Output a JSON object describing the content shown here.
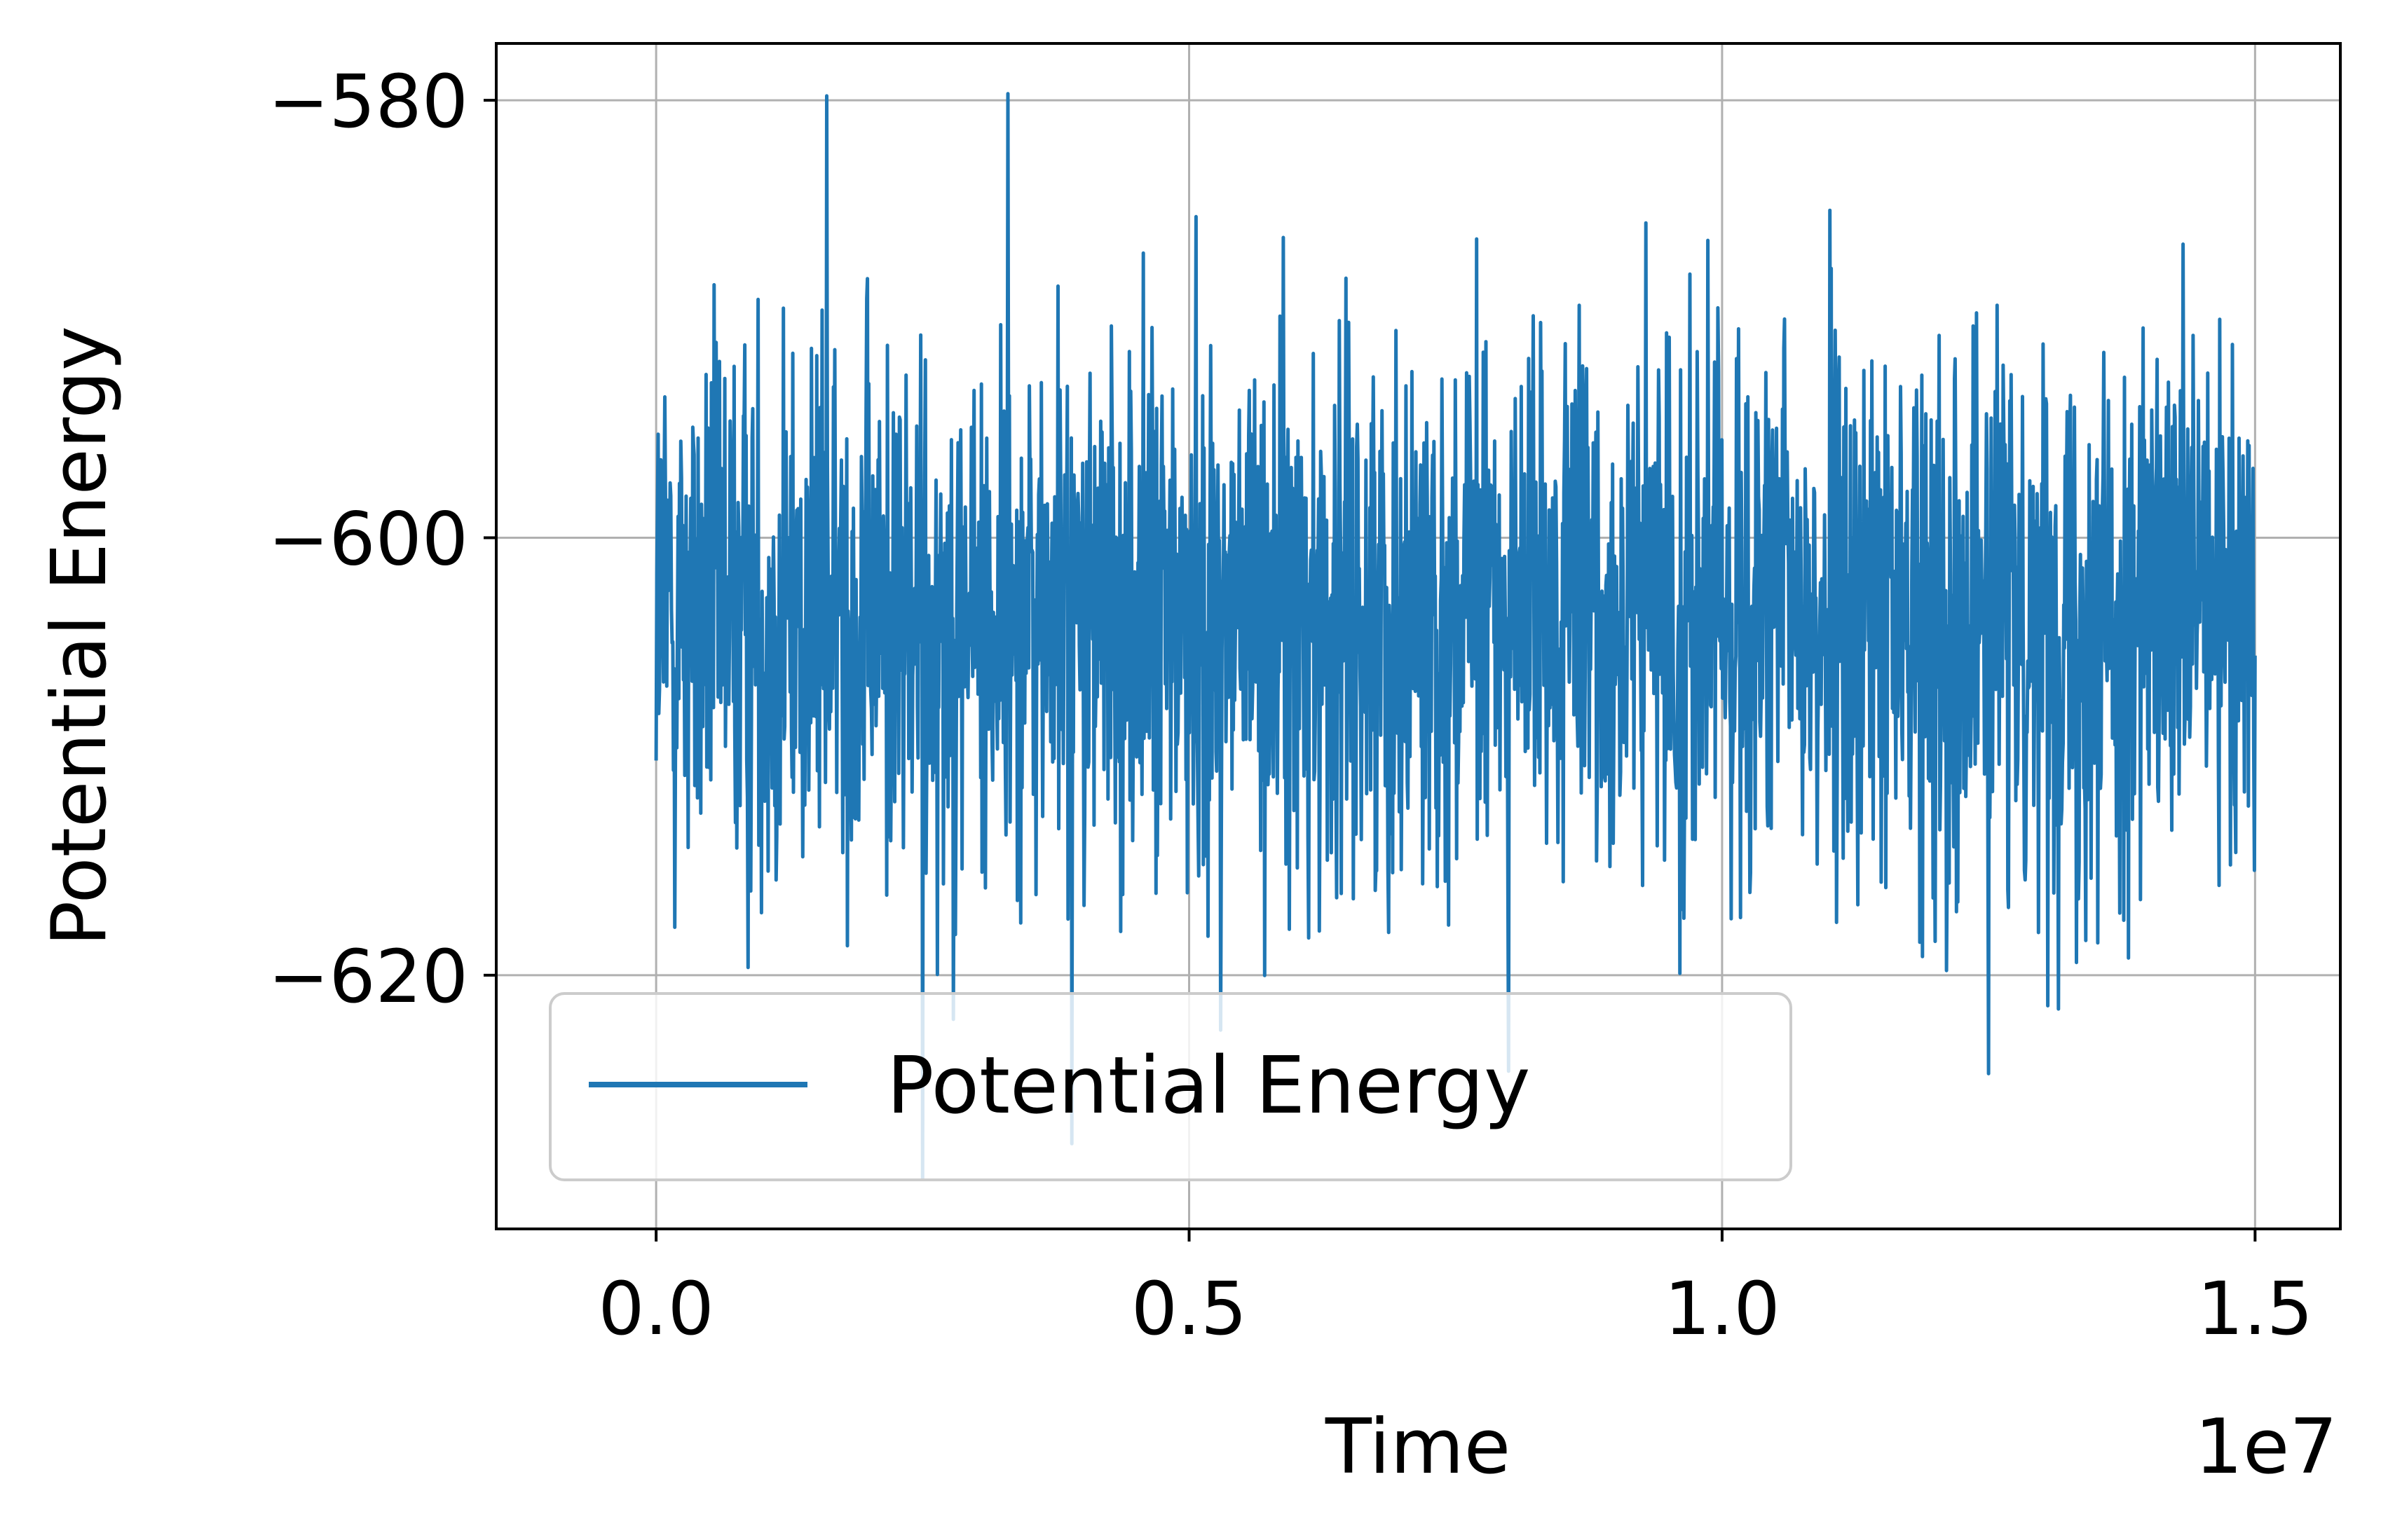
{
  "chart_data": {
    "type": "line",
    "xlabel": "Time",
    "ylabel": "Potential Energy",
    "x_offset_label": "1e7",
    "xlim": [
      -1.5,
      15.8
    ],
    "ylim": [
      -631.6,
      -577.4
    ],
    "x_ticks": [
      0.0,
      5.0,
      10.0,
      15.0
    ],
    "x_tick_labels": [
      "0.0",
      "0.5",
      "1.0",
      "1.5"
    ],
    "y_ticks": [
      -580,
      -600,
      -620
    ],
    "y_tick_labels": [
      "−580",
      "−600",
      "−620"
    ],
    "grid": true,
    "legend": {
      "location": "lower left",
      "entries": [
        "Potential Energy"
      ]
    },
    "series": [
      {
        "name": "Potential Energy",
        "color": "#1f77b4",
        "x_range": [
          0,
          15000000
        ],
        "approx_mean": -603.5,
        "approx_typical_range": [
          -614,
          -590
        ],
        "approx_min": -629.5,
        "approx_max": -579.8,
        "notable_extremes": [
          {
            "x": 1600000,
            "y": -579.8
          },
          {
            "x": 3300000,
            "y": -579.7
          },
          {
            "x": 2500000,
            "y": -629.3
          },
          {
            "x": 3900000,
            "y": -627.7
          },
          {
            "x": 12500000,
            "y": -624.5
          }
        ]
      }
    ]
  }
}
